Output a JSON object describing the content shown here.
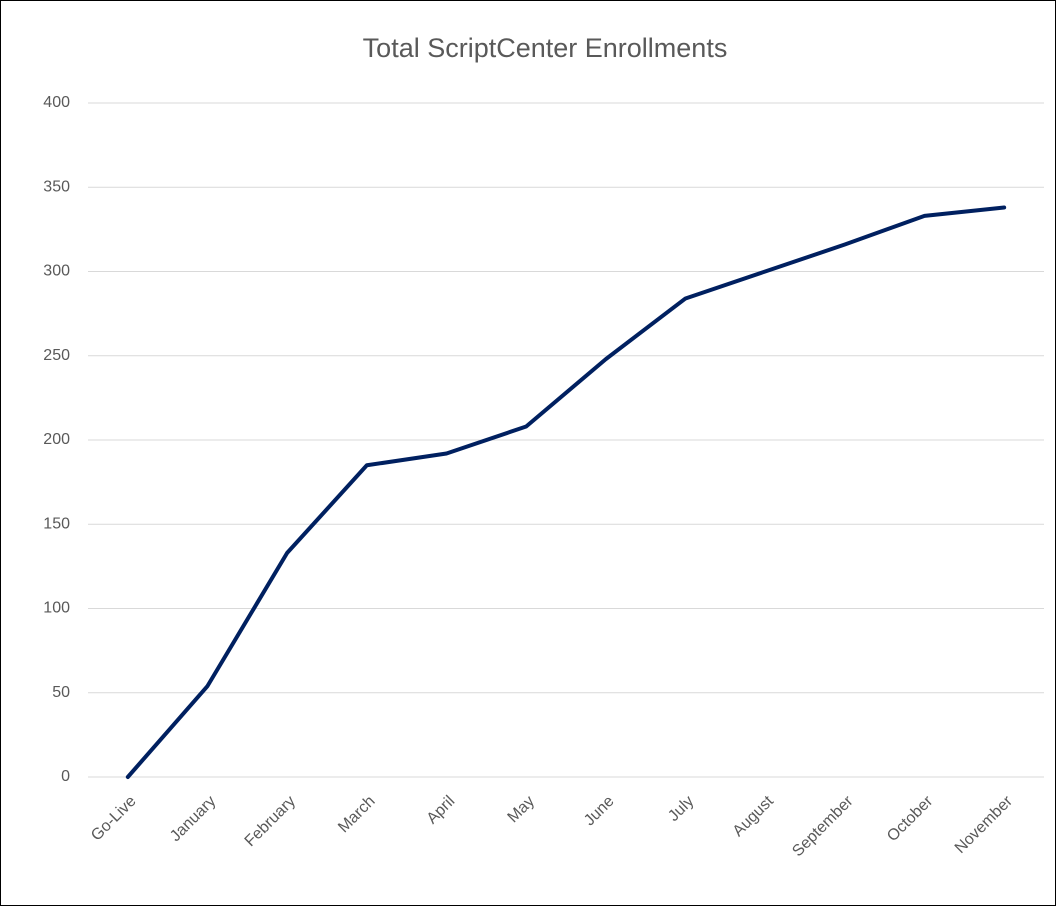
{
  "chart_data": {
    "type": "line",
    "title": "Total ScriptCenter Enrollments",
    "categories": [
      "Go-Live",
      "January",
      "February",
      "March",
      "April",
      "May",
      "June",
      "July",
      "August",
      "September",
      "October",
      "November"
    ],
    "series": [
      {
        "name": "Enrollments",
        "color": "#002060",
        "values": [
          0,
          54,
          133,
          185,
          192,
          208,
          248,
          284,
          300,
          316,
          333,
          338
        ]
      }
    ],
    "ylim": [
      0,
      400
    ],
    "yticks": [
      0,
      50,
      100,
      150,
      200,
      250,
      300,
      350,
      400
    ],
    "grid": true
  }
}
